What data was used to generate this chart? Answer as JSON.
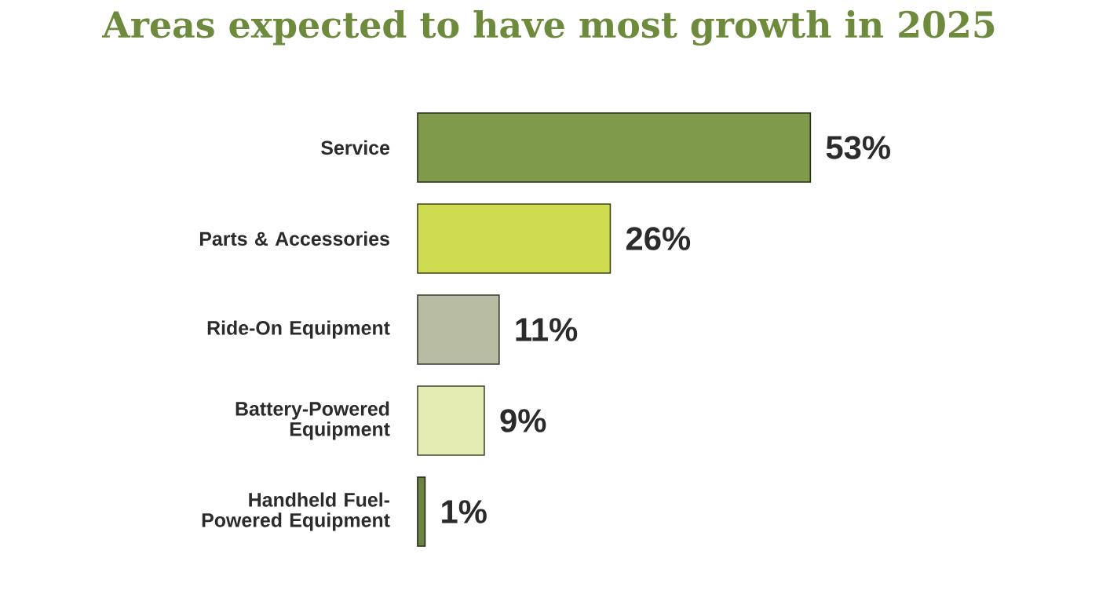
{
  "chart_data": {
    "type": "bar",
    "orientation": "horizontal",
    "title": "Areas expected to have most growth in 2025",
    "categories": [
      "Service",
      "Parts & Accessories",
      "Ride-On Equipment",
      "Battery-Powered Equipment",
      "Handheld Fuel-Powered Equipment"
    ],
    "values": [
      53,
      26,
      11,
      9,
      1
    ],
    "value_labels": [
      "53%",
      "26%",
      "11%",
      "9%",
      "1%"
    ],
    "colors": [
      "#7f9a4b",
      "#cfdc52",
      "#b8bca2",
      "#e4ecb2",
      "#6c8442"
    ],
    "tick_labels": "y"
  }
}
